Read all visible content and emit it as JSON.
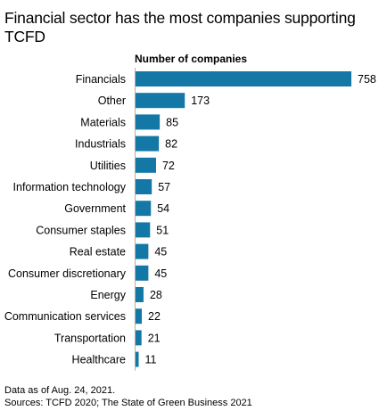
{
  "chart_data": {
    "type": "bar",
    "orientation": "horizontal",
    "title": "Financial sector has the most companies supporting TCFD",
    "axis_label": "Number of companies",
    "categories": [
      "Financials",
      "Other",
      "Materials",
      "Industrials",
      "Utilities",
      "Information technology",
      "Government",
      "Consumer staples",
      "Real estate",
      "Consumer discretionary",
      "Energy",
      "Communication services",
      "Transportation",
      "Healthcare"
    ],
    "values": [
      758,
      173,
      85,
      82,
      72,
      57,
      54,
      51,
      45,
      45,
      28,
      22,
      21,
      11
    ],
    "xlim": [
      0,
      758
    ],
    "bar_color": "#1478a6"
  },
  "footer": {
    "note": "Data as of Aug. 24, 2021.",
    "sources": "Sources: TCFD 2020; The State of Green Business 2021"
  }
}
